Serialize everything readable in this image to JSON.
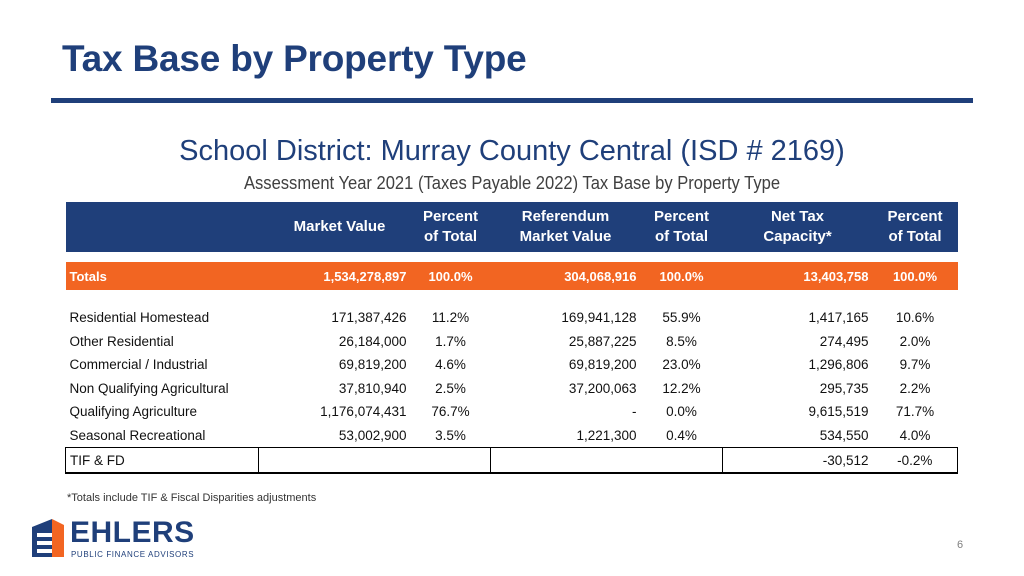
{
  "title": "Tax Base by Property Type",
  "subtitle": "School District: Murray County Central (ISD # 2169)",
  "caption": "Assessment Year 2021 (Taxes Payable 2022) Tax Base by Property Type",
  "colors": {
    "navy": "#1f3f7a",
    "orange": "#f26522"
  },
  "table": {
    "headers": {
      "market_value": "Market Value",
      "pct1_top": "Percent",
      "pct1_bottom": "of Total",
      "ref_top": "Referendum",
      "ref_bottom": "Market Value",
      "pct2_top": "Percent",
      "pct2_bottom": "of Total",
      "ntc_top": "Net Tax",
      "ntc_bottom": "Capacity*",
      "pct3_top": "Percent",
      "pct3_bottom": "of Total"
    },
    "totals": {
      "label": "Totals",
      "market_value": "1,534,278,897",
      "pct1": "100.0%",
      "ref_value": "304,068,916",
      "pct2": "100.0%",
      "ntc": "13,403,758",
      "pct3": "100.0%"
    },
    "rows": [
      {
        "label": "Residential Homestead",
        "market_value": "171,387,426",
        "pct1": "11.2%",
        "ref_value": "169,941,128",
        "pct2": "55.9%",
        "ntc": "1,417,165",
        "pct3": "10.6%"
      },
      {
        "label": "Other Residential",
        "market_value": "26,184,000",
        "pct1": "1.7%",
        "ref_value": "25,887,225",
        "pct2": "8.5%",
        "ntc": "274,495",
        "pct3": "2.0%"
      },
      {
        "label": "Commercial / Industrial",
        "market_value": "69,819,200",
        "pct1": "4.6%",
        "ref_value": "69,819,200",
        "pct2": "23.0%",
        "ntc": "1,296,806",
        "pct3": "9.7%"
      },
      {
        "label": "Non Qualifying Agricultural",
        "market_value": "37,810,940",
        "pct1": "2.5%",
        "ref_value": "37,200,063",
        "pct2": "12.2%",
        "ntc": "295,735",
        "pct3": "2.2%"
      },
      {
        "label": "Qualifying Agriculture",
        "market_value": "1,176,074,431",
        "pct1": "76.7%",
        "ref_value": "-",
        "pct2": "0.0%",
        "ntc": "9,615,519",
        "pct3": "71.7%"
      },
      {
        "label": "Seasonal Recreational",
        "market_value": "53,002,900",
        "pct1": "3.5%",
        "ref_value": "1,221,300",
        "pct2": "0.4%",
        "ntc": "534,550",
        "pct3": "4.0%"
      }
    ],
    "tif": {
      "label": "TIF & FD",
      "ntc": "-30,512",
      "pct3": "-0.2%"
    }
  },
  "footnote": "*Totals include TIF & Fiscal Disparities adjustments",
  "logo": {
    "word": "EHLERS",
    "tagline": "PUBLIC FINANCE ADVISORS",
    "icon": "building-e-logo-icon"
  },
  "page_number": "6"
}
